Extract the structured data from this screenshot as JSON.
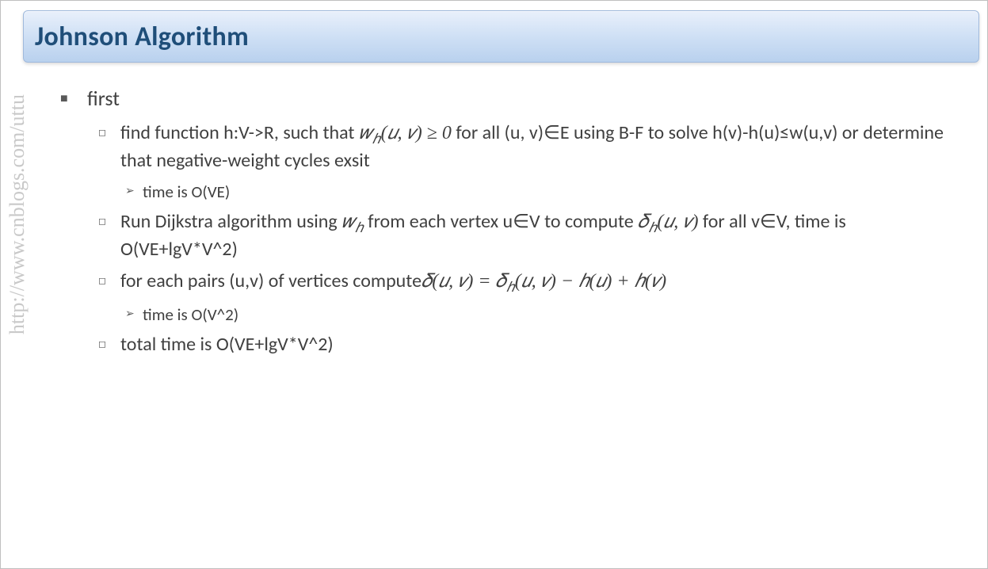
{
  "slide": {
    "title": "Johnson Algorithm",
    "watermark": "http://www.cnblogs.com/uttu",
    "bg_color": "#ffffff",
    "title_bar": {
      "gradient_top": "#e9f0fb",
      "gradient_mid": "#cfe0f5",
      "gradient_bottom": "#b9d1ee",
      "border_color": "#9fb9dc",
      "text_color": "#1f4e79",
      "font_size_pt": 26,
      "font_weight": "bold"
    },
    "body_text_color": "#404040",
    "bullet_marker_color": "#595959",
    "watermark_color": "#c9c9c9"
  },
  "content": {
    "l1": "first",
    "items": [
      {
        "text_pre": "find function h:V->R, such that ",
        "math1": "𝑤<sub>ℎ</sub>(𝑢, 𝑣) ≥ 0",
        "text_mid": " for all (u, v)∈E using B-F to solve h(v)-h(u)≤w(u,v) or determine that negative-weight cycles exsit",
        "sub": "time is O(VE)"
      },
      {
        "text_pre": "Run Dijkstra algorithm using ",
        "math1": "𝑤<sub>ℎ</sub>",
        "text_mid": " from each vertex u∈V to compute ",
        "math2": "𝛿<sub>ℎ</sub>(𝑢, 𝑣)",
        "text_post": " for all v∈V, time is O(VE+lgV*V^2)"
      },
      {
        "text_pre": "for each pairs (u,v) of vertices compute",
        "math1": "𝛿(𝑢, 𝑣) = 𝛿<sub>ℎ</sub>(𝑢, 𝑣) − ℎ(𝑢) + ℎ(𝑣)",
        "sub": "time is O(V^2)"
      },
      {
        "text_pre": "total time is O(VE+lgV*V^2)"
      }
    ]
  },
  "markers": {
    "l1": "■",
    "l2": "◻",
    "l3": "➢"
  }
}
